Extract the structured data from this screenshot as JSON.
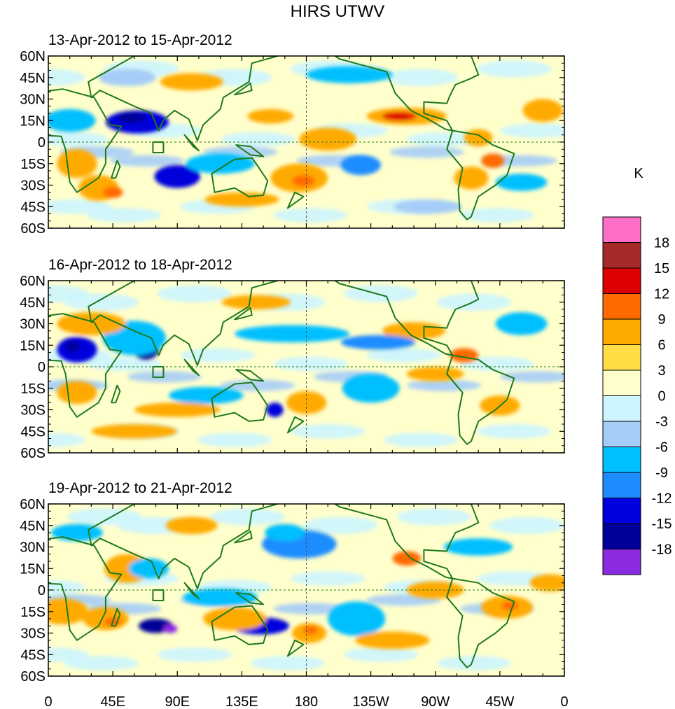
{
  "figure": {
    "title": "HIRS UTWV",
    "colorbar_unit": "K"
  },
  "panels": [
    {
      "period": "13-Apr-2012 to 15-Apr-2012"
    },
    {
      "period": "16-Apr-2012 to 18-Apr-2012"
    },
    {
      "period": "19-Apr-2012 to 21-Apr-2012"
    }
  ],
  "axes": {
    "lat_labels": [
      "60N",
      "45N",
      "30N",
      "15N",
      "0",
      "15S",
      "30S",
      "45S",
      "60S"
    ],
    "lat_values": [
      60,
      45,
      30,
      15,
      0,
      -15,
      -30,
      -45,
      -60
    ],
    "lon_labels": [
      "0",
      "45E",
      "90E",
      "135E",
      "180",
      "135W",
      "90W",
      "45W",
      "0"
    ],
    "lon_values": [
      0,
      45,
      90,
      135,
      180,
      225,
      270,
      315,
      360
    ]
  },
  "colorbar": {
    "levels": [
      "18",
      "15",
      "12",
      "9",
      "6",
      "3",
      "0",
      "-3",
      "-6",
      "-9",
      "-12",
      "-15",
      "-18"
    ],
    "colors": [
      "#ff6ec7",
      "#a52a2a",
      "#dd0000",
      "#ff6a00",
      "#ffaa00",
      "#ffdd44",
      "#ffffcc",
      "#ccf5ff",
      "#a6cdf7",
      "#00bfff",
      "#1e8cff",
      "#0000dd",
      "#000099",
      "#8a2be2"
    ]
  },
  "map_colors": {
    "coastline": "#1f7a1f",
    "background": "#ffffcc"
  }
}
